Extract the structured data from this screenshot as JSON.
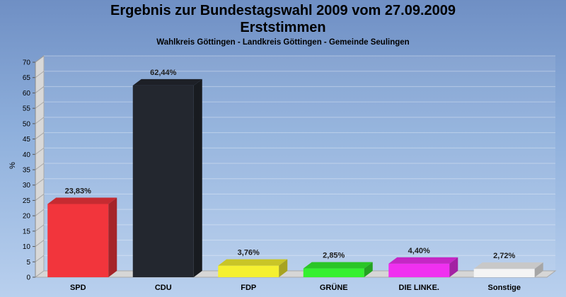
{
  "header": {
    "title_line1": "Ergebnis zur Bundestagswahl 2009 vom 27.09.2009",
    "title_line2": "Erststimmen",
    "subtitle": "Wahlkreis Göttingen - Landkreis Göttingen - Gemeinde Seulingen"
  },
  "chart_data": {
    "type": "bar",
    "title": "Ergebnis zur Bundestagswahl 2009 vom 27.09.2009",
    "subtitle": "Erststimmen",
    "ylabel": "%",
    "ylim": [
      0,
      70
    ],
    "yticks": [
      0,
      5,
      10,
      15,
      20,
      25,
      30,
      35,
      40,
      45,
      50,
      55,
      60,
      65,
      70
    ],
    "grid": true,
    "categories": [
      "SPD",
      "CDU",
      "FDP",
      "GRÜNE",
      "DIE LINKE.",
      "Sonstige"
    ],
    "values": [
      23.83,
      62.44,
      3.76,
      2.85,
      4.4,
      2.72
    ],
    "value_labels": [
      "23,83%",
      "62,44%",
      "3,76%",
      "2,85%",
      "4,40%",
      "2,72%"
    ],
    "colors": [
      "#f2353c",
      "#23272f",
      "#f5f030",
      "#35f030",
      "#f030f0",
      "#f4f4f4"
    ]
  }
}
